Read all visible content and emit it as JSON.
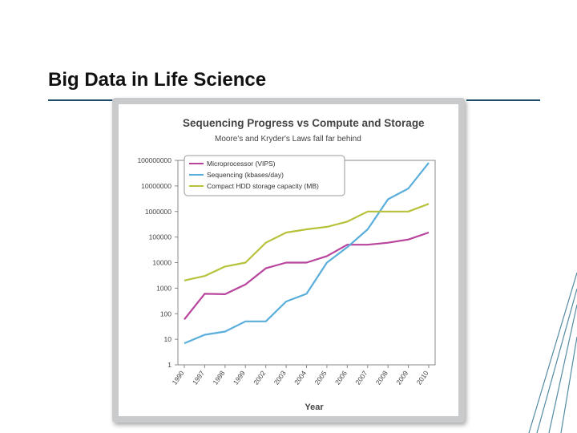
{
  "slide": {
    "title": "Big Data in Life Science"
  },
  "colors": {
    "rule": "#1d4f6b",
    "microprocessor": "#b8449e",
    "sequencing": "#5aaedb",
    "storage": "#b7c23a"
  },
  "chart_data": {
    "type": "line",
    "title": "Sequencing Progress vs Compute and Storage",
    "subtitle": "Moore's and Kryder's Laws fall far behind",
    "xlabel": "Year",
    "ylabel": "",
    "yscale": "log",
    "ylim": [
      1,
      100000000
    ],
    "yticks": [
      "100000000",
      "10000000",
      "1000000",
      "100000",
      "10000",
      "1000",
      "100",
      "10",
      "1"
    ],
    "categories": [
      "1990",
      "1997",
      "1998",
      "1999",
      "2002",
      "2003",
      "2004",
      "2005",
      "2006",
      "2007",
      "2008",
      "2009",
      "2010"
    ],
    "legend_position": "top-left",
    "series": [
      {
        "name": "Microprocessor (VIPS)",
        "color": "#b8449e",
        "values": [
          60,
          600,
          580,
          1400,
          6000,
          10000,
          10000,
          18000,
          50000,
          50000,
          60000,
          80000,
          150000
        ]
      },
      {
        "name": "Sequencing (kbases/day)",
        "color": "#5aaedb",
        "values": [
          7,
          15,
          20,
          50,
          50,
          300,
          600,
          10000,
          40000,
          200000,
          3000000,
          8000000,
          80000000
        ]
      },
      {
        "name": "Compact HDD storage capacity (MB)",
        "color": "#b7c23a",
        "values": [
          2000,
          3000,
          7000,
          10000,
          60000,
          150000,
          200000,
          250000,
          400000,
          1000000,
          1000000,
          1000000,
          2000000
        ]
      }
    ]
  }
}
